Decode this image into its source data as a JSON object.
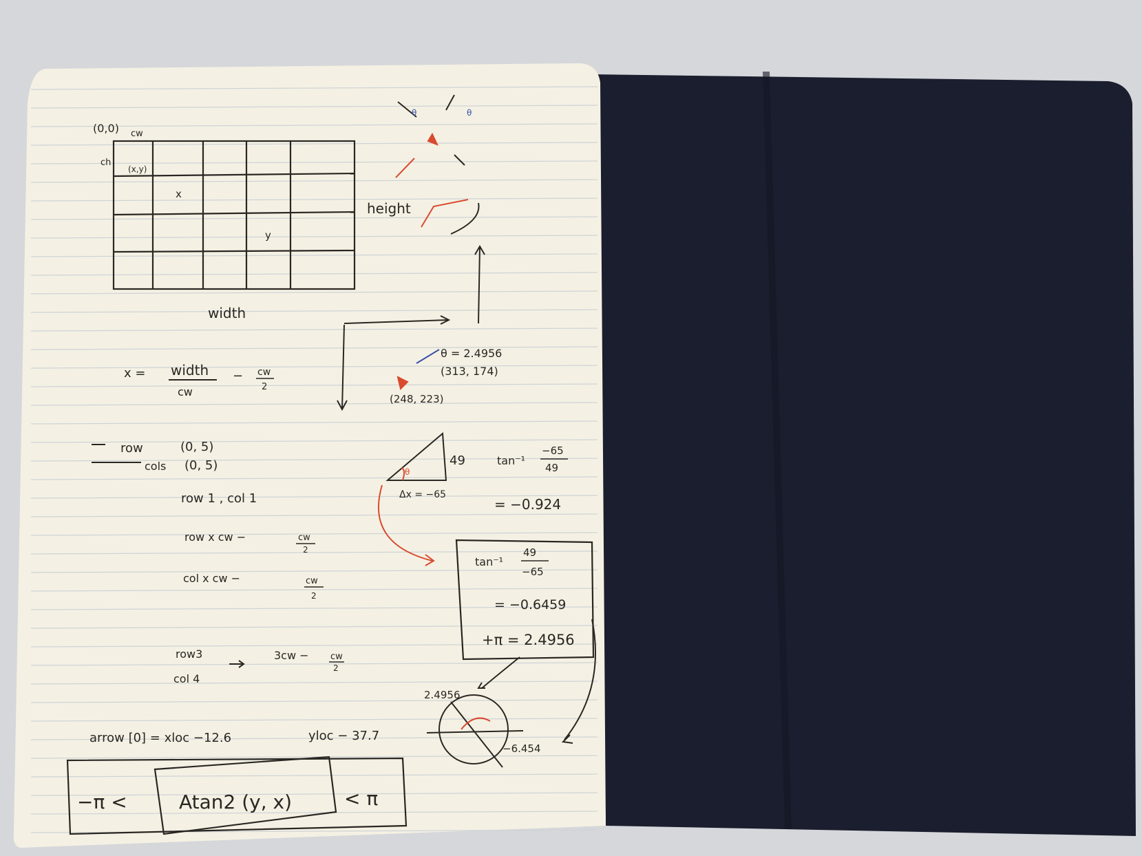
{
  "notebook": {
    "left_page": {
      "grid_sketch": {
        "origin_label": "(0,0)",
        "cw_label": "cw",
        "ch_label": "ch",
        "cell_label": "(x,y)",
        "x_mark": "x",
        "y_mark": "y",
        "width_label": "width",
        "height_label": "height"
      },
      "x_formula": {
        "lhs": "x =",
        "numerator": "width",
        "denominator": "cw",
        "minus": "−",
        "half_num": "cw",
        "half_den": "2"
      },
      "row_col": {
        "row_label": "row",
        "row_range": "(0, 5)",
        "col_label": "cols",
        "col_range": "(0, 5)",
        "row1col1": "row 1  ,  col 1",
        "row_line": "row x   cw  −",
        "row_frac_num": "cw",
        "row_frac_den": "2",
        "col_line": "col   x   cw   −",
        "col_frac_num": "cw",
        "col_frac_den": "2",
        "row3": "row3",
        "col4": "col 4",
        "row3_result": "3cw  −",
        "row3_frac_num": "cw",
        "row3_frac_den": "2"
      },
      "arrow_line": {
        "text": "arrow [0]  =   xloc −12.6",
        "yloc": "yloc − 37.7"
      },
      "boxed_formula": {
        "left": "−π <",
        "middle": "Atan2 (y, x)",
        "right": "< π"
      },
      "right_column": {
        "theta_label": "θ = 2.4956",
        "point_a": "(313, 174)",
        "point_b": "(248, 223)",
        "tri_side": "49",
        "tri_dx": "Δx = −65",
        "tan_expr_top": "tan⁻¹",
        "tan_frac1_num": "−65",
        "tan_frac1_den": "49",
        "tan_result1": "= −0.924",
        "box_tan": "tan⁻¹",
        "box_frac_num": "49",
        "box_frac_den": "−65",
        "box_result": "= −0.6459",
        "box_plus_pi": "+π = 2.4956",
        "circle_pos": "2.4956",
        "circle_neg": "−6.454"
      }
    }
  },
  "colors": {
    "paper": "#f4f1e4",
    "cover": "#1b1e2e",
    "ink": "#2a2622",
    "red_ink": "#d94a2e",
    "blue_ink": "#3a4fa8",
    "ruling": "#cfd3d6"
  }
}
